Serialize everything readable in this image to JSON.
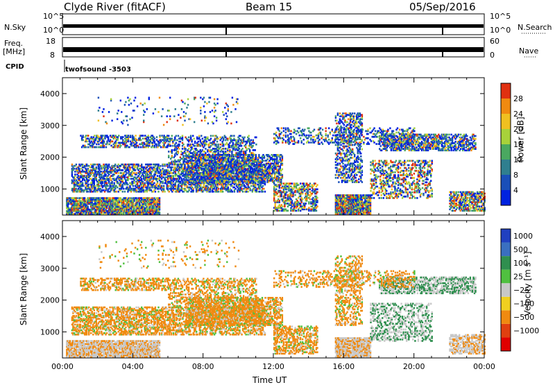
{
  "header": {
    "station": "Clyde River (fitACF)",
    "beam": "Beam 15",
    "date": "05/Sep/2016"
  },
  "strips": {
    "nsky_label": "N.Sky",
    "nsky_ticks": [
      "10^5",
      "10^0"
    ],
    "nsearch_label": "N.Search",
    "nsearch_ticks": [
      "10^5",
      "10^0"
    ],
    "freq_label": "Freq.",
    "freq_unit": "[MHz]",
    "freq_ticks": [
      "18",
      "8"
    ],
    "nave_label": "Nave",
    "nave_ticks": [
      "60",
      "0"
    ],
    "cpid_label": "CPID",
    "cpid_value": "twofsound -3503"
  },
  "chart_data": [
    {
      "type": "heatmap",
      "name": "power",
      "ylabel": "Slant Range [km]",
      "ylim": [
        180,
        4500
      ],
      "yticks": [
        1000,
        2000,
        3000,
        4000
      ],
      "xlim": [
        0,
        24
      ],
      "colorbar_label": "Power [dB]",
      "colorbar_ticks": [
        4,
        8,
        12,
        16,
        20,
        24,
        28
      ],
      "colors": [
        "#0022e0",
        "#1a4fb8",
        "#2f7f8f",
        "#4aa860",
        "#a8d23a",
        "#f0c020",
        "#f08a10",
        "#e03010"
      ]
    },
    {
      "type": "heatmap",
      "name": "velocity",
      "ylabel": "Slant Range [km]",
      "ylim": [
        180,
        4500
      ],
      "yticks": [
        1000,
        2000,
        3000,
        4000
      ],
      "xlim": [
        0,
        24
      ],
      "xlabel": "Time UT",
      "xticks": [
        "00:00",
        "04:00",
        "08:00",
        "12:00",
        "16:00",
        "20:00",
        "00:00"
      ],
      "colorbar_label": "Velocity [m s⁻¹]",
      "colorbar_ticks": [
        "1000",
        "500",
        "100",
        "25",
        "−25",
        "−100",
        "−500",
        "−1000"
      ],
      "colors": [
        "#2040c0",
        "#3a6fc0",
        "#2f8f4f",
        "#50c040",
        "#c8c8c8",
        "#f0d020",
        "#f08a10",
        "#e04010",
        "#e00000"
      ]
    }
  ]
}
